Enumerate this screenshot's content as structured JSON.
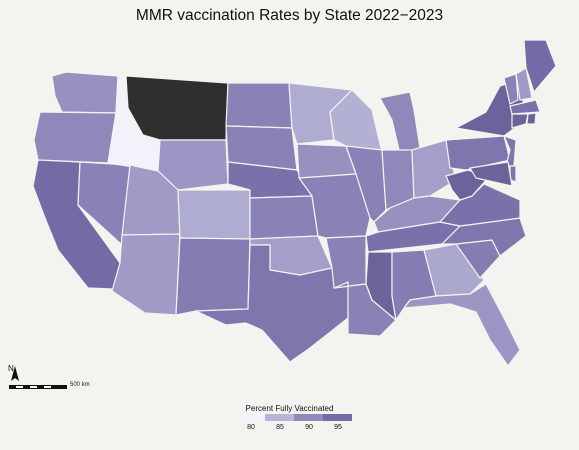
{
  "title": "MMR vaccination Rates by State 2022−2023",
  "legend": {
    "title": "Percent Fully Vaccinated",
    "ticks": [
      "80",
      "85",
      "90",
      "95"
    ],
    "colors": [
      "#f1f2fa",
      "#b7b5d6",
      "#8f88bb",
      "#766aa6"
    ]
  },
  "no_data_color": "#2f2f2f",
  "scale_label": "500 km",
  "north_label": "N",
  "states": {
    "WA": 89.0,
    "OR": 90.0,
    "CA": 95.0,
    "NV": 91.0,
    "ID": 80.0,
    "MT": null,
    "WY": 88.5,
    "UT": 88.0,
    "AZ": 88.0,
    "CO": 86.0,
    "NM": 92.0,
    "ND": 91.0,
    "SD": 91.0,
    "NE": 94.0,
    "KS": 91.0,
    "OK": 87.5,
    "TX": 93.0,
    "MN": 86.0,
    "IA": 89.0,
    "MO": 91.0,
    "AR": 91.0,
    "LA": 91.0,
    "WI": 85.5,
    "IL": 91.0,
    "MI": 90.0,
    "IN": 90.0,
    "OH": 87.5,
    "KY": 89.0,
    "TN": 94.0,
    "MS": 97.0,
    "AL": 92.0,
    "GA": 86.5,
    "FL": 88.5,
    "SC": 92.0,
    "NC": 93.0,
    "VA": 94.0,
    "WV": 96.0,
    "PA": 93.0,
    "NY": 96.0,
    "VT": 91.0,
    "NH": 88.0,
    "ME": 95.0,
    "MA": 94.0,
    "CT": 96.0,
    "RI": 96.0,
    "NJ": 93.0,
    "DE": 93.0,
    "MD": 96.0
  }
}
